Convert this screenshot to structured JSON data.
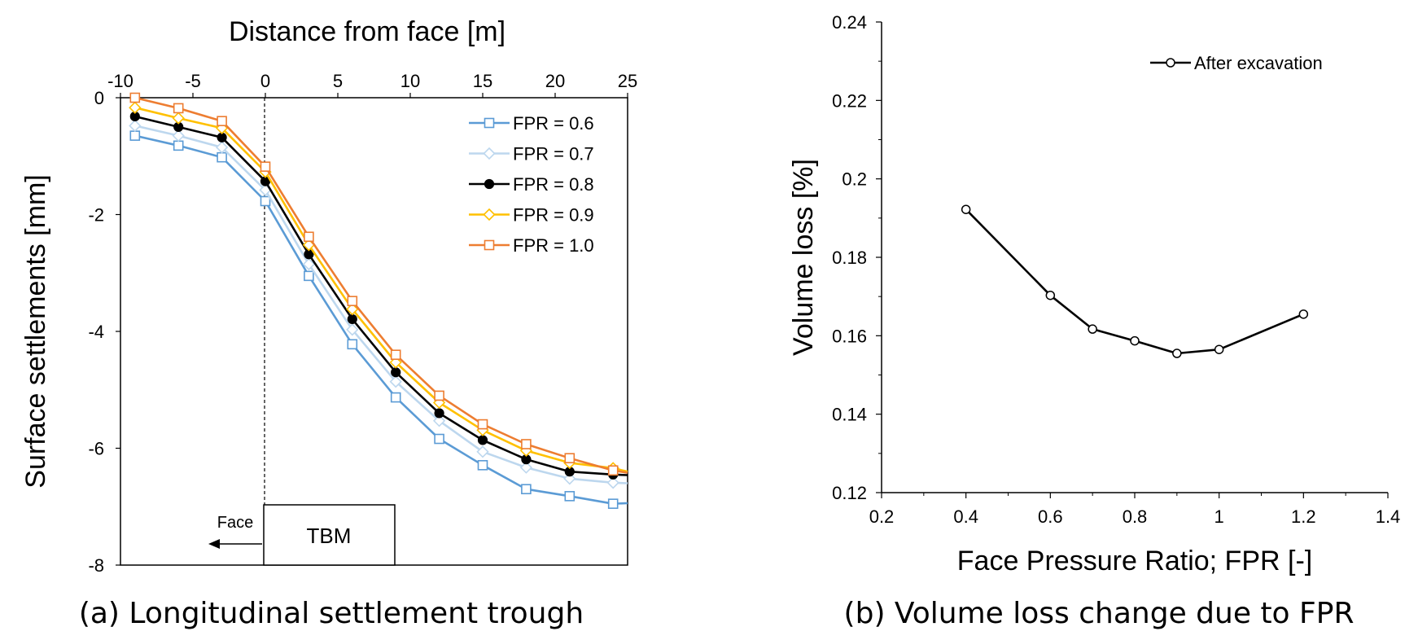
{
  "chart_data": [
    {
      "type": "line",
      "caption": "(a) Longitudinal settlement trough",
      "xlabel": "Distance from face [m]",
      "ylabel": "Surface settlements [mm]",
      "xlim": [
        -10,
        25
      ],
      "ylim": [
        -8,
        0
      ],
      "xticks": [
        "-10",
        "-5",
        "0",
        "5",
        "10",
        "15",
        "20",
        "25"
      ],
      "yticks": [
        "0",
        "-2",
        "-4",
        "-6",
        "-8"
      ],
      "x": [
        -9,
        -6,
        -3,
        0,
        3,
        6,
        9,
        12,
        15,
        18,
        21,
        24,
        25
      ],
      "series": [
        {
          "name": "FPR = 0.6",
          "color": "#5b9bd5",
          "marker": "square",
          "values": [
            -0.65,
            -0.82,
            -1.02,
            -1.77,
            -3.05,
            -4.22,
            -5.13,
            -5.84,
            -6.29,
            -6.7,
            -6.82,
            -6.95,
            -6.94
          ]
        },
        {
          "name": "FPR = 0.7",
          "color": "#bdd7ee",
          "marker": "diamond",
          "values": [
            -0.48,
            -0.65,
            -0.85,
            -1.58,
            -2.85,
            -3.97,
            -4.86,
            -5.53,
            -6.06,
            -6.33,
            -6.52,
            -6.59,
            -6.6
          ]
        },
        {
          "name": "FPR = 0.8",
          "color": "#000000",
          "marker": "circle",
          "values": [
            -0.32,
            -0.5,
            -0.68,
            -1.43,
            -2.68,
            -3.79,
            -4.7,
            -5.4,
            -5.86,
            -6.19,
            -6.4,
            -6.45,
            -6.46
          ]
        },
        {
          "name": "FPR = 0.9",
          "color": "#ffc000",
          "marker": "diamond",
          "values": [
            -0.17,
            -0.35,
            -0.52,
            -1.27,
            -2.52,
            -3.62,
            -4.53,
            -5.22,
            -5.69,
            -6.04,
            -6.25,
            -6.34,
            -6.4
          ]
        },
        {
          "name": "FPR = 1.0",
          "color": "#ed7d31",
          "marker": "square",
          "values": [
            0.0,
            -0.18,
            -0.4,
            -1.18,
            -2.38,
            -3.48,
            -4.4,
            -5.1,
            -5.59,
            -5.93,
            -6.17,
            -6.38,
            -6.42
          ]
        }
      ],
      "annotations": {
        "face_label": "Face",
        "tbm_label": "TBM"
      }
    },
    {
      "type": "line",
      "caption": "(b) Volume loss change due to FPR",
      "xlabel": "Face Pressure Ratio; FPR [-]",
      "ylabel": "Volume loss [%]",
      "xlim": [
        0.2,
        1.4
      ],
      "ylim": [
        0.12,
        0.24
      ],
      "xticks": [
        "0.2",
        "0.4",
        "0.6",
        "0.8",
        "1",
        "1.2",
        "1.4"
      ],
      "yticks": [
        "0.12",
        "0.14",
        "0.16",
        "0.18",
        "0.2",
        "0.22",
        "0.24"
      ],
      "series": [
        {
          "name": "After excavation",
          "color": "#000000",
          "marker": "open-circle",
          "x": [
            0.4,
            0.6,
            0.7,
            0.8,
            0.9,
            1.0,
            1.2
          ],
          "values": [
            0.1922,
            0.1703,
            0.1617,
            0.1587,
            0.1555,
            0.1565,
            0.1655
          ]
        }
      ]
    }
  ]
}
